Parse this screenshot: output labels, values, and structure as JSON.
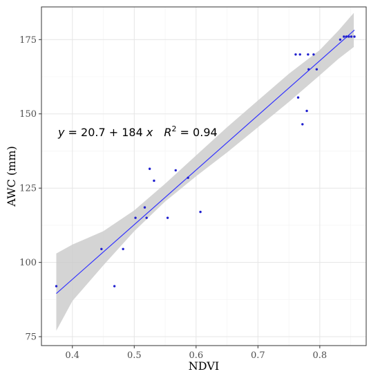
{
  "chart_data": {
    "type": "scatter",
    "xlabel": "NDVI",
    "ylabel": "AWC (mm)",
    "xlim": [
      0.35,
      0.875
    ],
    "ylim": [
      72,
      186
    ],
    "x_ticks": [
      0.4,
      0.5,
      0.6,
      0.7,
      0.8
    ],
    "x_tick_labels": [
      "0.4",
      "0.5",
      "0.6",
      "0.7",
      "0.8"
    ],
    "y_ticks": [
      75,
      100,
      125,
      150,
      175
    ],
    "y_tick_labels": [
      "75",
      "100",
      "125",
      "150",
      "175"
    ],
    "grid": true,
    "annotation": {
      "y_var": "y",
      "equals_intercept": " = 20.7 + 184 ",
      "x_var": "x",
      "r_var": "R",
      "r_sup": "2",
      "r_value": " = 0.94"
    },
    "regression": {
      "intercept": 20.7,
      "slope": 184
    },
    "confidence_band": [
      {
        "x": 0.374,
        "lo": 77,
        "hi": 103
      },
      {
        "x": 0.4,
        "lo": 87,
        "hi": 106
      },
      {
        "x": 0.45,
        "lo": 99,
        "hi": 110.5
      },
      {
        "x": 0.5,
        "lo": 110.5,
        "hi": 117.5
      },
      {
        "x": 0.55,
        "lo": 120.5,
        "hi": 126.5
      },
      {
        "x": 0.6,
        "lo": 129,
        "hi": 136
      },
      {
        "x": 0.65,
        "lo": 137,
        "hi": 145.5
      },
      {
        "x": 0.7,
        "lo": 145.5,
        "hi": 154.5
      },
      {
        "x": 0.75,
        "lo": 154,
        "hi": 163.5
      },
      {
        "x": 0.8,
        "lo": 163,
        "hi": 171.5
      },
      {
        "x": 0.83,
        "lo": 168.5,
        "hi": 178
      },
      {
        "x": 0.855,
        "lo": 172.5,
        "hi": 184
      }
    ],
    "points": [
      {
        "x": 0.374,
        "y": 92
      },
      {
        "x": 0.447,
        "y": 104.5
      },
      {
        "x": 0.468,
        "y": 92
      },
      {
        "x": 0.482,
        "y": 104.5
      },
      {
        "x": 0.502,
        "y": 115
      },
      {
        "x": 0.517,
        "y": 118.5
      },
      {
        "x": 0.52,
        "y": 115
      },
      {
        "x": 0.525,
        "y": 131.5
      },
      {
        "x": 0.532,
        "y": 127.5
      },
      {
        "x": 0.554,
        "y": 115
      },
      {
        "x": 0.567,
        "y": 131
      },
      {
        "x": 0.587,
        "y": 128.5
      },
      {
        "x": 0.607,
        "y": 117
      },
      {
        "x": 0.761,
        "y": 170
      },
      {
        "x": 0.765,
        "y": 155.5
      },
      {
        "x": 0.768,
        "y": 170
      },
      {
        "x": 0.772,
        "y": 146.5
      },
      {
        "x": 0.779,
        "y": 151
      },
      {
        "x": 0.781,
        "y": 170
      },
      {
        "x": 0.782,
        "y": 165
      },
      {
        "x": 0.79,
        "y": 170
      },
      {
        "x": 0.795,
        "y": 165
      },
      {
        "x": 0.833,
        "y": 175
      },
      {
        "x": 0.839,
        "y": 176
      },
      {
        "x": 0.843,
        "y": 176
      },
      {
        "x": 0.847,
        "y": 176
      },
      {
        "x": 0.851,
        "y": 176
      },
      {
        "x": 0.856,
        "y": 176
      }
    ],
    "colors": {
      "points": "#1f1fcf",
      "line": "#3333ff",
      "band": "#cccccc",
      "panel_border": "#333333"
    }
  }
}
